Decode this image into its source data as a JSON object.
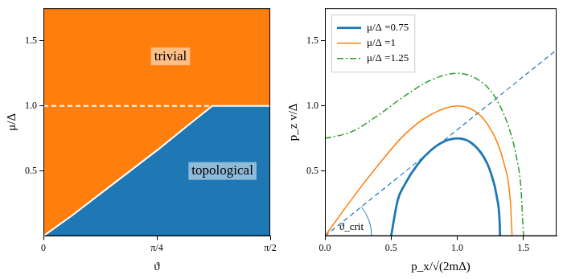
{
  "chart_data": [
    {
      "type": "area",
      "xlabel": "ϑ",
      "ylabel": "μ/Δ",
      "xlim": [
        0,
        1.5708
      ],
      "xticks": [
        0,
        {
          "value": 0.7854,
          "label": "π/4"
        },
        {
          "value": 1.5708,
          "label": "π/2"
        }
      ],
      "ylim": [
        0,
        1.75
      ],
      "yticks": [
        0.5,
        {
          "value": 1,
          "label": "1.0"
        },
        1.5
      ],
      "grid": false,
      "boundary": {
        "x": [
          0,
          0.2,
          0.4,
          0.6,
          0.8,
          1.0,
          1.17,
          1.5708
        ],
        "values": [
          0,
          0.16,
          0.33,
          0.5,
          0.67,
          0.85,
          1.0,
          1.0
        ],
        "color": "#ffffff"
      },
      "regions": [
        {
          "label": "trivial",
          "color": "#ff7f0e",
          "x": 0.88,
          "y": 1.38
        },
        {
          "label": "topological",
          "color": "#1f77b4",
          "x": 1.24,
          "y": 0.5
        }
      ],
      "reference_line": {
        "x": [
          0,
          1.17
        ],
        "values": [
          1,
          1
        ],
        "color": "#ffffff",
        "line_style": "dashed"
      }
    },
    {
      "type": "line",
      "xlabel": "p_x/√(2mΔ)",
      "ylabel": "p_z v/Δ",
      "xlim": [
        0,
        1.75
      ],
      "xticks": [
        {
          "value": 0,
          "label": "0.0"
        },
        0.5,
        {
          "value": 1,
          "label": "1.0"
        },
        1.5
      ],
      "ylim": [
        0,
        1.75
      ],
      "yticks": [
        0.5,
        {
          "value": 1,
          "label": "1.0"
        },
        1.5
      ],
      "grid": false,
      "legend": "upper left",
      "series": [
        {
          "name": "μ/Δ =0.75",
          "color": "#1f77b4",
          "line_style": "solid",
          "x": [
            0.5,
            0.55,
            0.6,
            0.7,
            0.8,
            0.9,
            1.0,
            1.1,
            1.2,
            1.25,
            1.3,
            1.32,
            1.3229
          ],
          "values": [
            0,
            0.276,
            0.391,
            0.55,
            0.658,
            0.726,
            0.75,
            0.72,
            0.607,
            0.496,
            0.294,
            0.107,
            0
          ]
        },
        {
          "name": "μ/Δ =1",
          "color": "#ff7f0e",
          "line_style": "solid",
          "x": [
            0,
            0.2,
            0.4,
            0.6,
            0.8,
            1.0,
            1.1,
            1.2,
            1.3,
            1.35,
            1.4,
            1.414
          ],
          "values": [
            0,
            0.279,
            0.542,
            0.778,
            0.933,
            1.0,
            0.978,
            0.898,
            0.724,
            0.569,
            0.28,
            0
          ]
        },
        {
          "name": "μ/Δ =1.25",
          "color": "#2ca02c",
          "line_style": "dashdot",
          "x": [
            0,
            0.2,
            0.4,
            0.6,
            0.8,
            1.0,
            1.2,
            1.3,
            1.4,
            1.45,
            1.48,
            1.5
          ],
          "values": [
            0.75,
            0.801,
            0.926,
            1.074,
            1.197,
            1.25,
            1.17,
            1.042,
            0.801,
            0.589,
            0.381,
            0
          ]
        }
      ],
      "tangent_line": {
        "x": [
          0,
          1.75
        ],
        "values": [
          0,
          1.43
        ],
        "color": "#1f77b4",
        "line_style": "dashed"
      },
      "annotations": [
        {
          "text": "ϑ_crit",
          "x": 0.2,
          "y": 0.07
        }
      ]
    }
  ]
}
